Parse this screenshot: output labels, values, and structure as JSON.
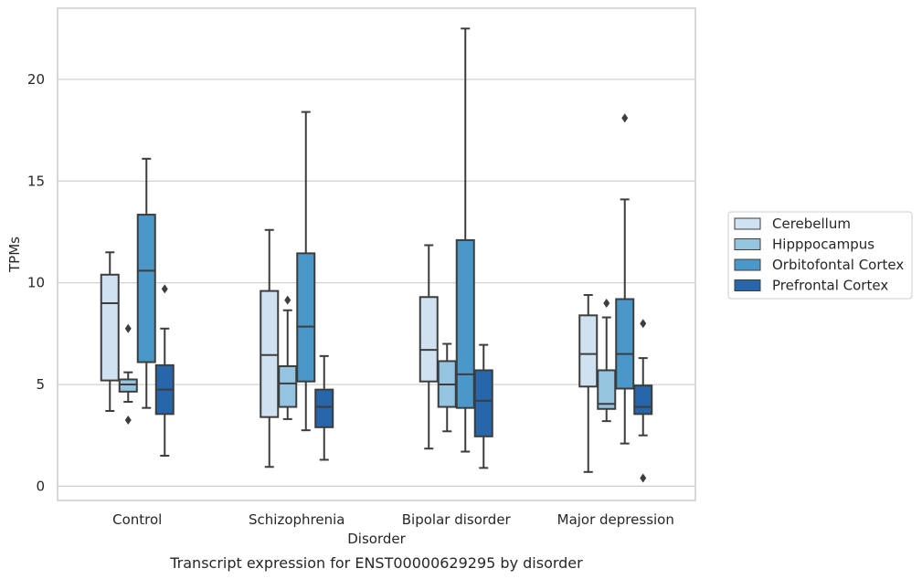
{
  "chart_data": {
    "type": "box",
    "caption": "Transcript expression for ENST00000629295 by disorder",
    "xlabel": "Disorder",
    "ylabel": "TPMs",
    "ylim": [
      -0.7,
      23.5
    ],
    "yticks": [
      0,
      5,
      10,
      15,
      20
    ],
    "grid": "horizontal",
    "legend_position": "right",
    "categories": [
      "Control",
      "Schizophrenia",
      "Bipolar disorder",
      "Major depression"
    ],
    "series": [
      {
        "name": "Cerebellum",
        "color": "#d0e1f2",
        "boxes": [
          {
            "whislo": 3.7,
            "q1": 5.2,
            "med": 9.0,
            "q3": 10.4,
            "whishi": 11.5,
            "fliers": []
          },
          {
            "whislo": 0.95,
            "q1": 3.4,
            "med": 6.45,
            "q3": 9.6,
            "whishi": 12.6,
            "fliers": []
          },
          {
            "whislo": 1.85,
            "q1": 5.15,
            "med": 6.7,
            "q3": 9.3,
            "whishi": 11.85,
            "fliers": []
          },
          {
            "whislo": 0.7,
            "q1": 4.9,
            "med": 6.5,
            "q3": 8.4,
            "whishi": 9.4,
            "fliers": []
          }
        ]
      },
      {
        "name": "Hipppocampus",
        "color": "#94c4df",
        "boxes": [
          {
            "whislo": 4.15,
            "q1": 4.65,
            "med": 5.0,
            "q3": 5.25,
            "whishi": 5.6,
            "fliers": [
              3.25,
              7.75
            ]
          },
          {
            "whislo": 3.3,
            "q1": 3.9,
            "med": 5.05,
            "q3": 5.9,
            "whishi": 8.65,
            "fliers": [
              9.15
            ]
          },
          {
            "whislo": 2.7,
            "q1": 3.9,
            "med": 5.0,
            "q3": 6.15,
            "whishi": 7.0,
            "fliers": []
          },
          {
            "whislo": 3.2,
            "q1": 3.8,
            "med": 4.05,
            "q3": 5.7,
            "whishi": 8.3,
            "fliers": [
              9.0
            ]
          }
        ]
      },
      {
        "name": "Orbitofontal Cortex",
        "color": "#4a98c9",
        "boxes": [
          {
            "whislo": 3.85,
            "q1": 6.1,
            "med": 10.6,
            "q3": 13.35,
            "whishi": 16.1,
            "fliers": []
          },
          {
            "whislo": 2.75,
            "q1": 5.15,
            "med": 7.85,
            "q3": 11.45,
            "whishi": 18.4,
            "fliers": []
          },
          {
            "whislo": 1.7,
            "q1": 3.85,
            "med": 5.5,
            "q3": 12.1,
            "whishi": 22.5,
            "fliers": []
          },
          {
            "whislo": 2.1,
            "q1": 4.8,
            "med": 6.5,
            "q3": 9.2,
            "whishi": 14.1,
            "fliers": [
              18.1
            ]
          }
        ]
      },
      {
        "name": "Prefrontal Cortex",
        "color": "#2866ab",
        "boxes": [
          {
            "whislo": 1.5,
            "q1": 3.55,
            "med": 4.75,
            "q3": 5.95,
            "whishi": 7.75,
            "fliers": [
              9.7
            ]
          },
          {
            "whislo": 1.3,
            "q1": 2.9,
            "med": 3.9,
            "q3": 4.75,
            "whishi": 6.4,
            "fliers": []
          },
          {
            "whislo": 0.9,
            "q1": 2.45,
            "med": 4.2,
            "q3": 5.7,
            "whishi": 6.95,
            "fliers": []
          },
          {
            "whislo": 2.5,
            "q1": 3.55,
            "med": 3.9,
            "q3": 4.95,
            "whishi": 6.3,
            "fliers": [
              0.4,
              8.0
            ]
          }
        ]
      }
    ]
  }
}
